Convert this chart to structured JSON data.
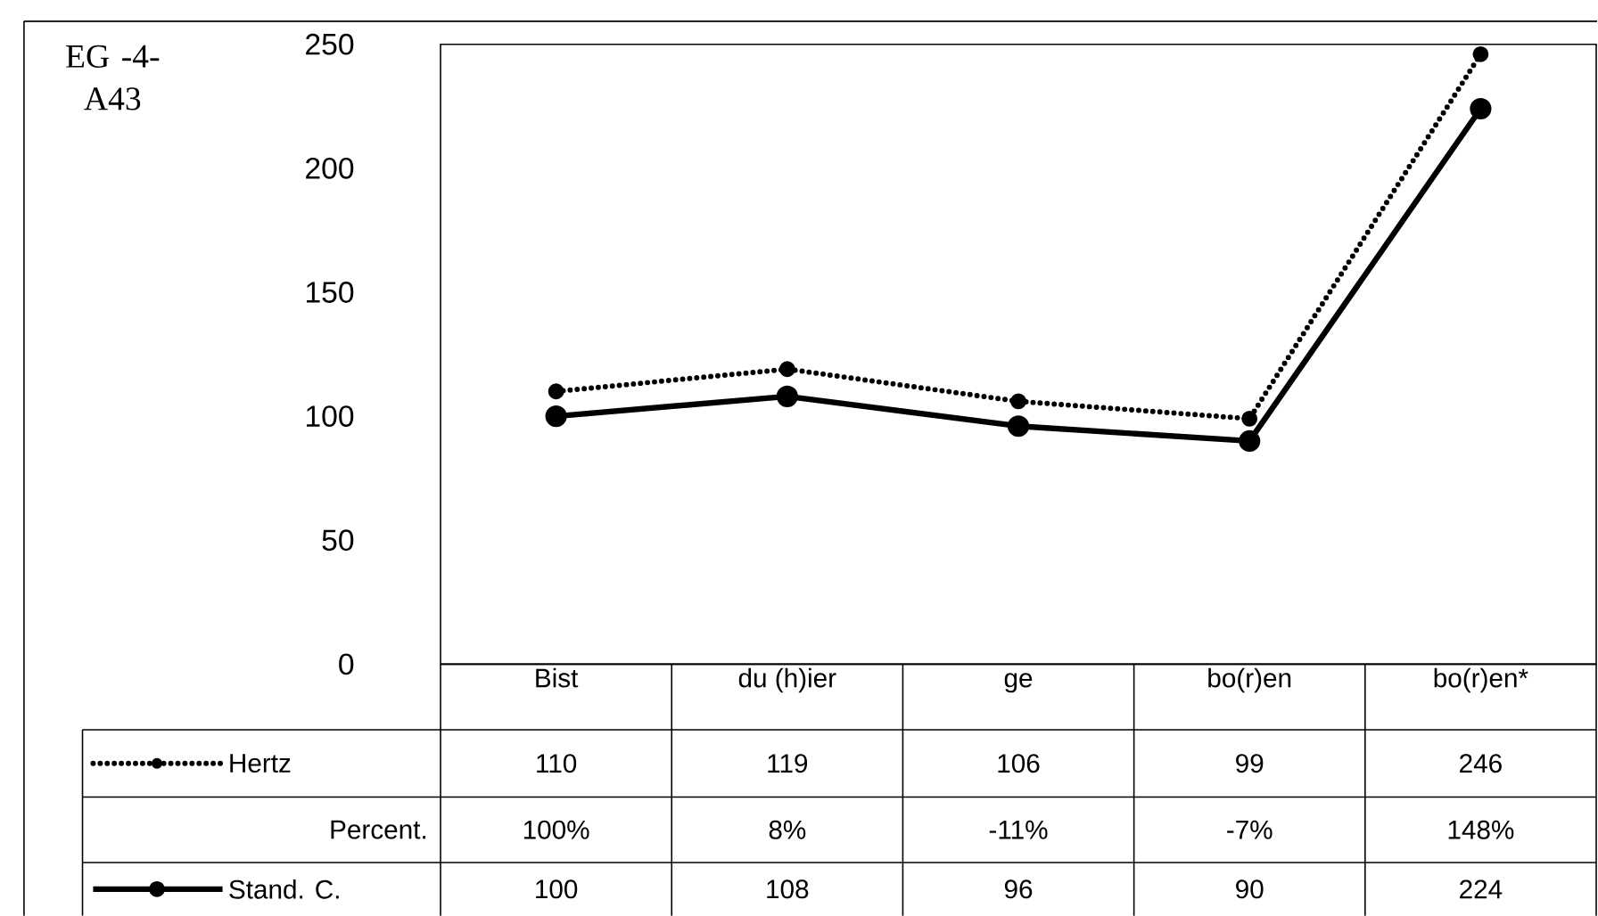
{
  "chart_data": {
    "type": "line",
    "title": "EG -4- A43",
    "categories": [
      "Bist",
      "du (h)ier",
      "ge",
      "bo(r)en",
      "bo(r)en*"
    ],
    "series": [
      {
        "name": "Hertz",
        "color": "#000000",
        "values": [
          110,
          119,
          106,
          99,
          246
        ],
        "value_labels": [
          "110",
          "119",
          "106",
          "99",
          "246"
        ],
        "line_style": "dotted",
        "marker": "circle"
      },
      {
        "name": "Stand. C.",
        "color": "#000000",
        "values": [
          100,
          108,
          96,
          90,
          224
        ],
        "value_labels": [
          "100",
          "108",
          "96",
          "90",
          "224"
        ],
        "line_style": "solid",
        "marker": "circle"
      }
    ],
    "annotations": [
      "Percent.",
      "100%",
      "8%",
      "-11%",
      "-7%",
      "148%"
    ],
    "ylim": [
      0,
      250
    ],
    "yticks": [
      0,
      50,
      100,
      150,
      200,
      250
    ],
    "legend": "bottom"
  }
}
